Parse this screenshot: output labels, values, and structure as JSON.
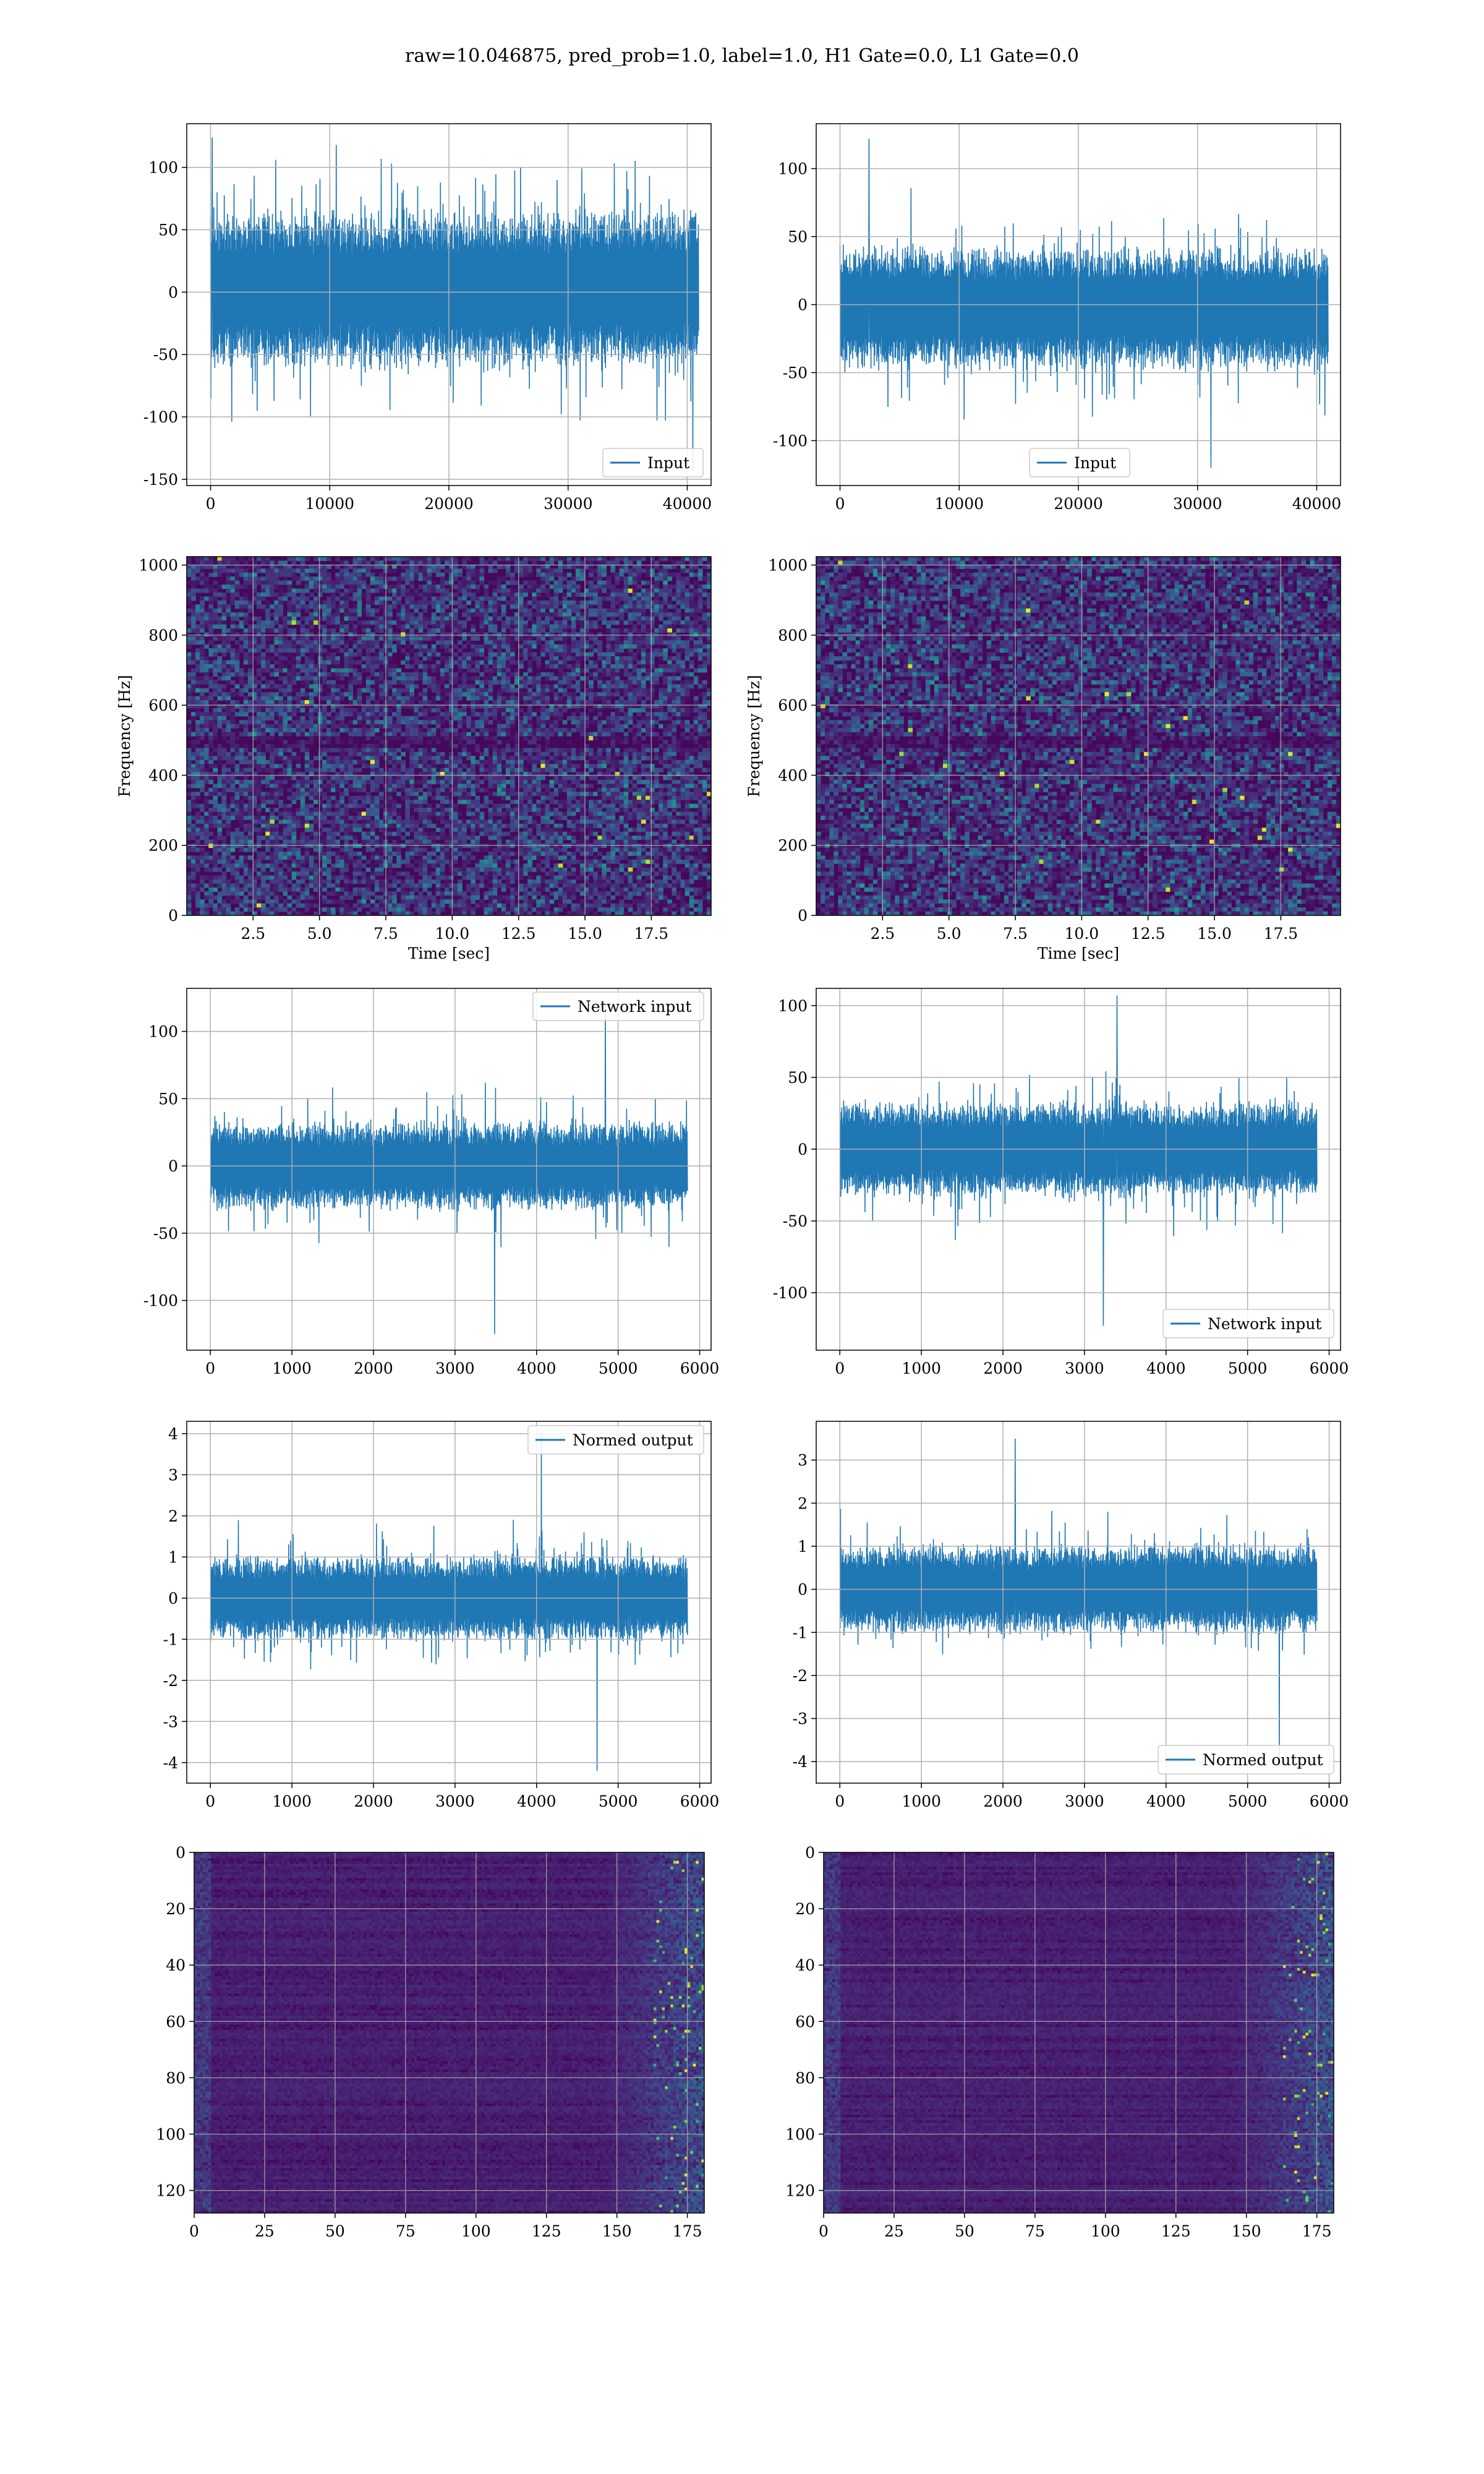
{
  "figure": {
    "title": "raw=10.046875, pred_prob=1.0, label=1.0, H1 Gate=0.0, L1 Gate=0.0",
    "colors": {
      "line": "#1f77b4",
      "grid": "#b0b0b0",
      "frame": "#000000"
    }
  },
  "chart_data": [
    {
      "id": "p0",
      "type": "line",
      "title": "",
      "xlabel": "",
      "ylabel": "",
      "xlim": [
        -2000,
        42000
      ],
      "ylim": [
        -155,
        135
      ],
      "xticks": [
        0,
        10000,
        20000,
        30000,
        40000
      ],
      "yticks": [
        -150,
        -100,
        -50,
        0,
        50,
        100
      ],
      "grid": true,
      "legend": {
        "position": "lower right"
      },
      "series": [
        {
          "name": "Input",
          "x_range": [
            0,
            40959
          ],
          "band": [
            -65,
            70
          ],
          "peak_max": 124,
          "peak_min": -143
        }
      ]
    },
    {
      "id": "p1",
      "type": "line",
      "title": "",
      "xlabel": "",
      "ylabel": "",
      "xlim": [
        -2000,
        42000
      ],
      "ylim": [
        -133,
        133
      ],
      "xticks": [
        0,
        10000,
        20000,
        30000,
        40000
      ],
      "yticks": [
        -100,
        -50,
        0,
        50,
        100
      ],
      "grid": true,
      "legend": {
        "position": "lower center"
      },
      "series": [
        {
          "name": "Input",
          "x_range": [
            0,
            40959
          ],
          "band": [
            -50,
            45
          ],
          "peak_max": 122,
          "peak_min": -120
        }
      ]
    },
    {
      "id": "p2",
      "type": "heatmap",
      "title": "",
      "xlabel": "Time [sec]",
      "ylabel": "Frequency [Hz]",
      "xlim": [
        0,
        19.75
      ],
      "ylim": [
        0,
        1024
      ],
      "xticks": [
        2.5,
        5.0,
        7.5,
        10.0,
        12.5,
        15.0,
        17.5
      ],
      "yticks": [
        0,
        200,
        400,
        600,
        800,
        1000
      ],
      "grid": true,
      "colormap": "viridis"
    },
    {
      "id": "p3",
      "type": "heatmap",
      "title": "",
      "xlabel": "Time [sec]",
      "ylabel": "Frequency [Hz]",
      "xlim": [
        0,
        19.75
      ],
      "ylim": [
        0,
        1024
      ],
      "xticks": [
        2.5,
        5.0,
        7.5,
        10.0,
        12.5,
        15.0,
        17.5
      ],
      "yticks": [
        0,
        200,
        400,
        600,
        800,
        1000
      ],
      "grid": true,
      "colormap": "viridis"
    },
    {
      "id": "p4",
      "type": "line",
      "title": "",
      "xlabel": "",
      "ylabel": "",
      "xlim": [
        -290,
        6140
      ],
      "ylim": [
        -137,
        132
      ],
      "xticks": [
        0,
        1000,
        2000,
        3000,
        4000,
        5000,
        6000
      ],
      "yticks": [
        -100,
        -50,
        0,
        50,
        100
      ],
      "grid": true,
      "legend": {
        "position": "upper right"
      },
      "series": [
        {
          "name": "Network input",
          "x_range": [
            0,
            5850
          ],
          "band": [
            -35,
            35
          ],
          "peak_max": 120,
          "peak_min": -125
        }
      ]
    },
    {
      "id": "p5",
      "type": "line",
      "title": "",
      "xlabel": "",
      "ylabel": "",
      "xlim": [
        -290,
        6140
      ],
      "ylim": [
        -140,
        112
      ],
      "xticks": [
        0,
        1000,
        2000,
        3000,
        4000,
        5000,
        6000
      ],
      "yticks": [
        -100,
        -50,
        0,
        50,
        100
      ],
      "grid": true,
      "legend": {
        "position": "lower right"
      },
      "series": [
        {
          "name": "Network input",
          "x_range": [
            0,
            5850
          ],
          "band": [
            -35,
            35
          ],
          "peak_max": 107,
          "peak_min": -123
        }
      ]
    },
    {
      "id": "p6",
      "type": "line",
      "title": "",
      "xlabel": "",
      "ylabel": "",
      "xlim": [
        -290,
        6140
      ],
      "ylim": [
        -4.5,
        4.3
      ],
      "xticks": [
        0,
        1000,
        2000,
        3000,
        4000,
        5000,
        6000
      ],
      "yticks": [
        -4,
        -3,
        -2,
        -1,
        0,
        1,
        2,
        3,
        4
      ],
      "grid": true,
      "legend": {
        "position": "upper right"
      },
      "series": [
        {
          "name": "Normed output",
          "x_range": [
            0,
            5850
          ],
          "band": [
            -1.1,
            1.1
          ],
          "peak_max": 4.0,
          "peak_min": -4.2
        }
      ]
    },
    {
      "id": "p7",
      "type": "line",
      "title": "",
      "xlabel": "",
      "ylabel": "",
      "xlim": [
        -290,
        6140
      ],
      "ylim": [
        -4.5,
        3.9
      ],
      "xticks": [
        0,
        1000,
        2000,
        3000,
        4000,
        5000,
        6000
      ],
      "yticks": [
        -4,
        -3,
        -2,
        -1,
        0,
        1,
        2,
        3
      ],
      "grid": true,
      "legend": {
        "position": "lower right"
      },
      "series": [
        {
          "name": "Normed output",
          "x_range": [
            0,
            5850
          ],
          "band": [
            -1.1,
            1.1
          ],
          "peak_max": 3.5,
          "peak_min": -4.1
        }
      ]
    },
    {
      "id": "p8",
      "type": "heatmap",
      "title": "",
      "xlabel": "",
      "ylabel": "",
      "xlim": [
        0,
        181
      ],
      "ylim": [
        128,
        0
      ],
      "xticks": [
        0,
        25,
        50,
        75,
        100,
        125,
        150,
        175
      ],
      "yticks": [
        0,
        20,
        40,
        60,
        80,
        100,
        120
      ],
      "grid": true,
      "colormap": "viridis"
    },
    {
      "id": "p9",
      "type": "heatmap",
      "title": "",
      "xlabel": "",
      "ylabel": "",
      "xlim": [
        0,
        181
      ],
      "ylim": [
        128,
        0
      ],
      "xticks": [
        0,
        25,
        50,
        75,
        100,
        125,
        150,
        175
      ],
      "yticks": [
        0,
        20,
        40,
        60,
        80,
        100,
        120
      ],
      "grid": true,
      "colormap": "viridis"
    }
  ]
}
